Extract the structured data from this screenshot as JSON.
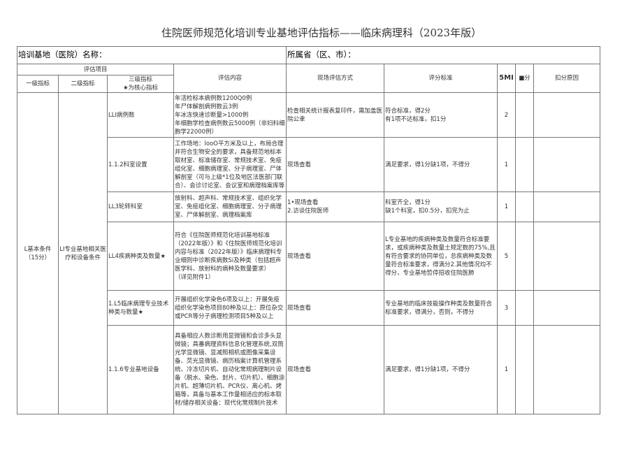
{
  "title": "住院医师规范化培训专业基地评估指标——临床病理科（2023年版）",
  "base_name_label": "培训基地（医院）名称：",
  "province_label": "所属省（区、市）：",
  "headers": {
    "group": "评估项目",
    "level1": "一级指标",
    "level2": "二级指标",
    "level3": "三级指标\n★为核心指标",
    "content": "评估内容",
    "method": "现场评估方式",
    "standard": "评分标准",
    "full_score": "5MI",
    "score": "■分",
    "reason": "扣分原因"
  },
  "level1": "L基本条件\n（15分）",
  "level2": "LI专业基地相关医疗和设备条件",
  "rows": [
    {
      "indicator": "LLI病例数",
      "content": "年活检标本病例数1200Q0例\n年尸体解剖病例数云3例\n年冰冻快速诊断量>1000例\n年细胞学检查病例数云5000例（非妇科细胞学22000例）",
      "method": "检查相关统计报表复印件，需加盖医院公聿",
      "standard": "符合标准，得2分\n有1项不达标准，扣1分",
      "score": "2"
    },
    {
      "indicator": "1.1.2科室设置",
      "content": "工作场地：looO平方米及以上，布局合理并符合生物安全的要求，具备规范地标本取材室、标准储存室、常规技术室、免疫组化室、细胞病理室、分子病理室、尸体解剖室（可与上级*1位及地区法医部门联合）、会诊讨论室、会议室和病理档案库等",
      "method": "现场查看",
      "standard": "满足要求，得1分缺1项，不得分",
      "score": "1"
    },
    {
      "indicator": "LL3轮转科室",
      "content": "放射科、超声科、常规技术室、组织化学室、免疫组化室、细胞病理室、分子病理室、尸体解剖室、病理档案库",
      "method": "1•现场查看\n2.访谈住院医师",
      "standard": "科室齐全，得1分\n缺1个科室，扣0.5分，扣完为止",
      "score": "1"
    },
    {
      "indicator": "LL4疾病种类及数量★",
      "content": "符合《住院医师规范化培训基地标准（2022年版）》和《住院医师规范化培训内容与标准（2022年版）》临床病理科专业细则中诊断疾病数Si及种类（包括超声医学科、放射科的病种及数量要求）\n（详见附件1）",
      "method": "现场查看",
      "standard": "L专业基地的疾病种类及数量符合标准要求，或疾病种类及数量土规定数的75%,且有符合要求的协同单位，总疾病种类及数量符合标准要求，得满分2.其他情况均不得分，专业基地哲停招收住院医肺",
      "score": "5"
    },
    {
      "indicator": "1.L5临床病理专业技术种类与数量★",
      "content": "开展组织化学染色6项及以上：开展免疫组织化学染色项目80种及以上：原位杂交或PCR等分子病理检测项目5种及以上",
      "method": "现场查看",
      "standard": "专业基地的临床技能操作种类及数量符合标准要求，得满分，否则，不得分",
      "score": "3"
    },
    {
      "indicator": "1.1.6专业基地设备",
      "content": "具备相应人数诊断用显微镜和会诊多头显微镜；具番病理资料信息化管理系统,双筒光学显微镜、显减照相机或图像采集设备、荧光显微镜、病历档案计算机管理系统、冷冻切片机、自动化常规病理制片设备（脱水、染色、封片、切片机）、细胞涂片机、超薄切片机、PCR仪、离心机、烤箱等，具备与基本工作量相适应的标本取材/储存相关设备：现代化常规制片技术",
      "method": "现场查看",
      "standard": "满足要求，得1分缺1项，不得分",
      "score": "1"
    }
  ]
}
